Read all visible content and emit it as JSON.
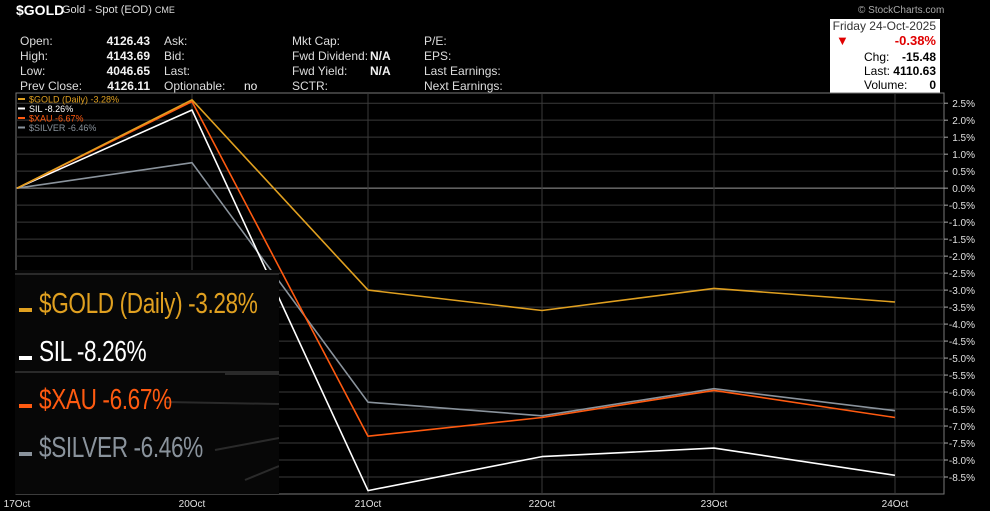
{
  "header": {
    "symbol": "$GOLD",
    "description": "Gold - Spot (EOD)",
    "exchange": "CME",
    "brand": "© StockCharts.com",
    "left": [
      {
        "label": "Open:",
        "value": "4126.43"
      },
      {
        "label": "High:",
        "value": "4143.69"
      },
      {
        "label": "Low:",
        "value": "4046.65"
      },
      {
        "label": "Prev Close:",
        "value": "4126.11"
      }
    ],
    "mid1": [
      {
        "label": "Ask:",
        "value": ""
      },
      {
        "label": "Bid:",
        "value": ""
      },
      {
        "label": "Last:",
        "value": ""
      },
      {
        "label": "Optionable:",
        "value": "no"
      }
    ],
    "mid2": [
      {
        "label": "Mkt Cap:",
        "value": ""
      },
      {
        "label": "Fwd Dividend:",
        "value": "N/A"
      },
      {
        "label": "Fwd Yield:",
        "value": "N/A"
      },
      {
        "label": "SCTR:",
        "value": ""
      }
    ],
    "mid3": [
      {
        "label": "P/E:",
        "value": ""
      },
      {
        "label": "EPS:",
        "value": ""
      },
      {
        "label": "Last Earnings:",
        "value": ""
      },
      {
        "label": "Next Earnings:",
        "value": ""
      }
    ],
    "quote": {
      "date": "Friday  24-Oct-2025",
      "change_pct": "-0.38%",
      "chg_label": "Chg:",
      "chg": "-15.48",
      "last_label": "Last:",
      "last": "4110.63",
      "volume_label": "Volume:",
      "volume": "0"
    }
  },
  "colors": {
    "gold": "#e0a020",
    "sil": "#ffffff",
    "xau": "#ff5a10",
    "silver": "#8a939c",
    "grid": "#3a3a3a"
  },
  "chart_data": {
    "type": "line",
    "x": [
      "17Oct",
      "20Oct",
      "21Oct",
      "22Oct",
      "23Oct",
      "24Oct"
    ],
    "ylim": [
      -9.0,
      2.8
    ],
    "yticks": [
      "2.5%",
      "2.0%",
      "1.5%",
      "1.0%",
      "0.5%",
      "0.0%",
      "-0.5%",
      "-1.0%",
      "-1.5%",
      "-2.0%",
      "-2.5%",
      "-3.0%",
      "-3.5%",
      "-4.0%",
      "-4.5%",
      "-5.0%",
      "-5.5%",
      "-6.0%",
      "-6.5%",
      "-7.0%",
      "-7.5%",
      "-8.0%",
      "-8.5%"
    ],
    "series": [
      {
        "name": "$GOLD (Daily)",
        "legend": "$GOLD (Daily) -3.28%",
        "color_key": "gold",
        "values": [
          0,
          2.6,
          -3.0,
          -3.6,
          -2.95,
          -3.35
        ]
      },
      {
        "name": "SIL",
        "legend": "SIL -8.26%",
        "color_key": "sil",
        "values": [
          0,
          2.3,
          -8.9,
          -7.9,
          -7.65,
          -8.45
        ]
      },
      {
        "name": "$XAU",
        "legend": "$XAU -6.67%",
        "color_key": "xau",
        "values": [
          0,
          2.55,
          -7.3,
          -6.75,
          -5.95,
          -6.75
        ]
      },
      {
        "name": "$SILVER",
        "legend": "$SILVER -6.46%",
        "color_key": "silver",
        "values": [
          0,
          0.75,
          -6.3,
          -6.7,
          -5.9,
          -6.55
        ]
      }
    ]
  }
}
